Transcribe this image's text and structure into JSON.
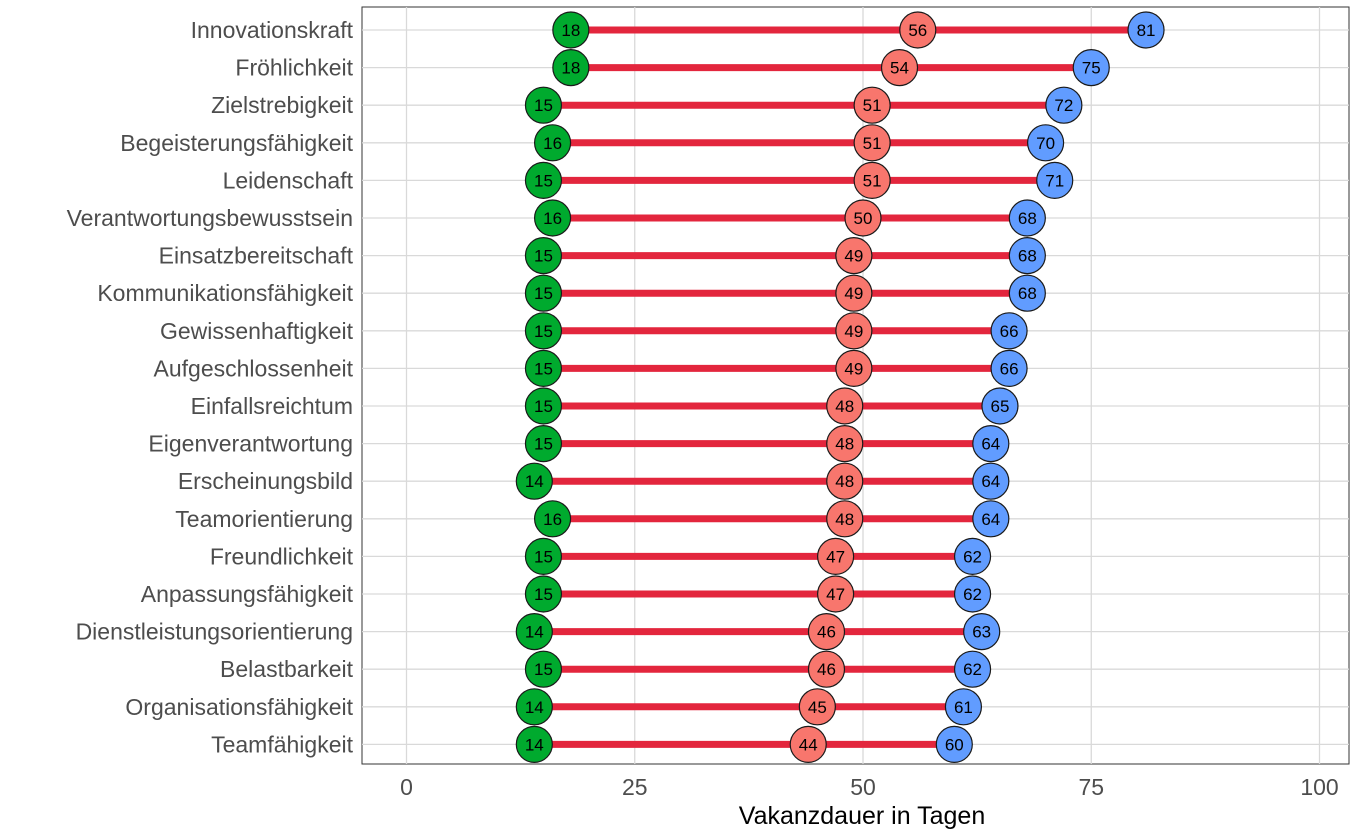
{
  "chart_data": {
    "type": "dumbbell",
    "xlabel": "Vakanzdauer in Tagen",
    "xlim": [
      0,
      100
    ],
    "xticks": [
      0,
      25,
      50,
      75,
      100
    ],
    "grid": true,
    "categories": [
      "Innovationskraft",
      "Fröhlichkeit",
      "Zielstrebigkeit",
      "Begeisterungsfähigkeit",
      "Leidenschaft",
      "Verantwortungsbewusstsein",
      "Einsatzbereitschaft",
      "Kommunikationsfähigkeit",
      "Gewissenhaftigkeit",
      "Aufgeschlossenheit",
      "Einfallsreichtum",
      "Eigenverantwortung",
      "Erscheinungsbild",
      "Teamorientierung",
      "Freundlichkeit",
      "Anpassungsfähigkeit",
      "Dienstleistungsorientierung",
      "Belastbarkeit",
      "Organisationsfähigkeit",
      "Teamfähigkeit"
    ],
    "series": [
      {
        "color": "#00AA2E",
        "values": [
          18,
          18,
          15,
          16,
          15,
          16,
          15,
          15,
          15,
          15,
          15,
          15,
          14,
          16,
          15,
          15,
          14,
          15,
          14,
          14
        ]
      },
      {
        "color": "#F8766D",
        "values": [
          56,
          54,
          51,
          51,
          51,
          50,
          49,
          49,
          49,
          49,
          48,
          48,
          48,
          48,
          47,
          47,
          46,
          46,
          45,
          44
        ]
      },
      {
        "color": "#619CFF",
        "values": [
          81,
          75,
          72,
          70,
          71,
          68,
          68,
          68,
          66,
          66,
          65,
          64,
          64,
          64,
          62,
          62,
          63,
          62,
          61,
          60
        ]
      }
    ],
    "segment_color": "#E3263D"
  }
}
